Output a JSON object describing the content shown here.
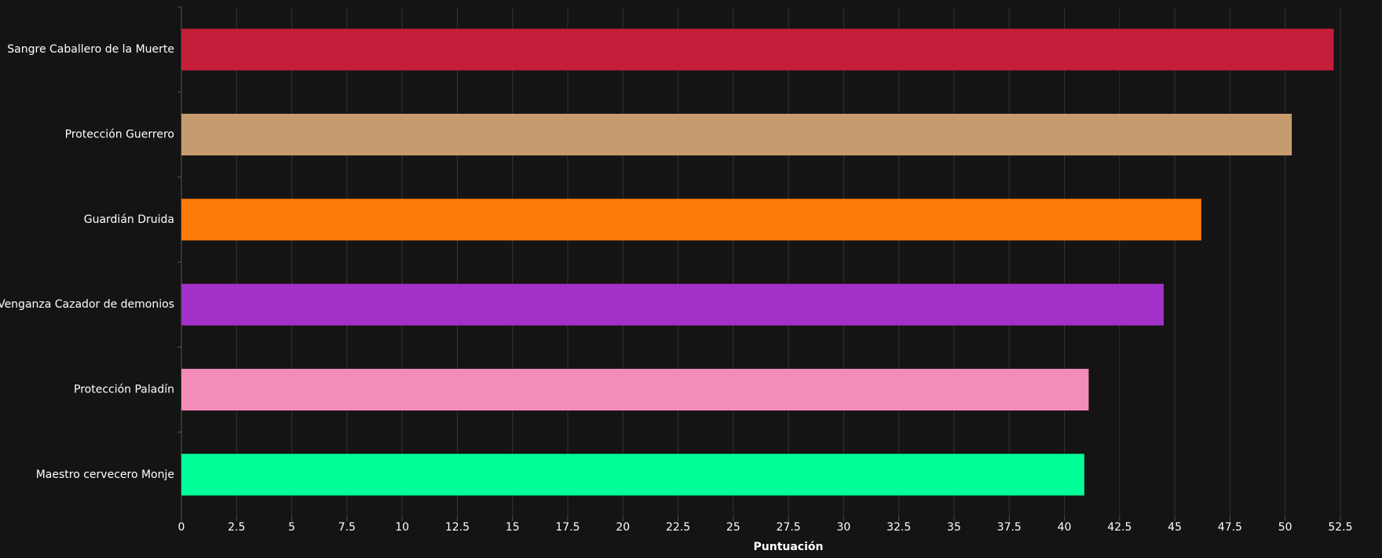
{
  "chart_data": {
    "type": "hbar",
    "x_label": "Puntuación",
    "categories": [
      "Sangre Caballero de la Muerte",
      "Protección Guerrero",
      "Guardián Druida",
      "Venganza Cazador de demonios",
      "Protección Paladín",
      "Maestro cervecero Monje"
    ],
    "values": [
      52.2,
      50.3,
      46.2,
      44.5,
      41.1,
      40.9
    ],
    "colors": [
      "#C41E3A",
      "#C69B6D",
      "#FF7C0A",
      "#A330C9",
      "#F48CBA",
      "#00FF98"
    ],
    "xlim": [
      0,
      53
    ],
    "xticks": [
      0,
      2.5,
      5,
      7.5,
      10,
      12.5,
      15,
      17.5,
      20,
      22.5,
      25,
      27.5,
      30,
      32.5,
      35,
      37.5,
      40,
      42.5,
      45,
      47.5,
      50,
      52.5
    ],
    "grid": true
  }
}
